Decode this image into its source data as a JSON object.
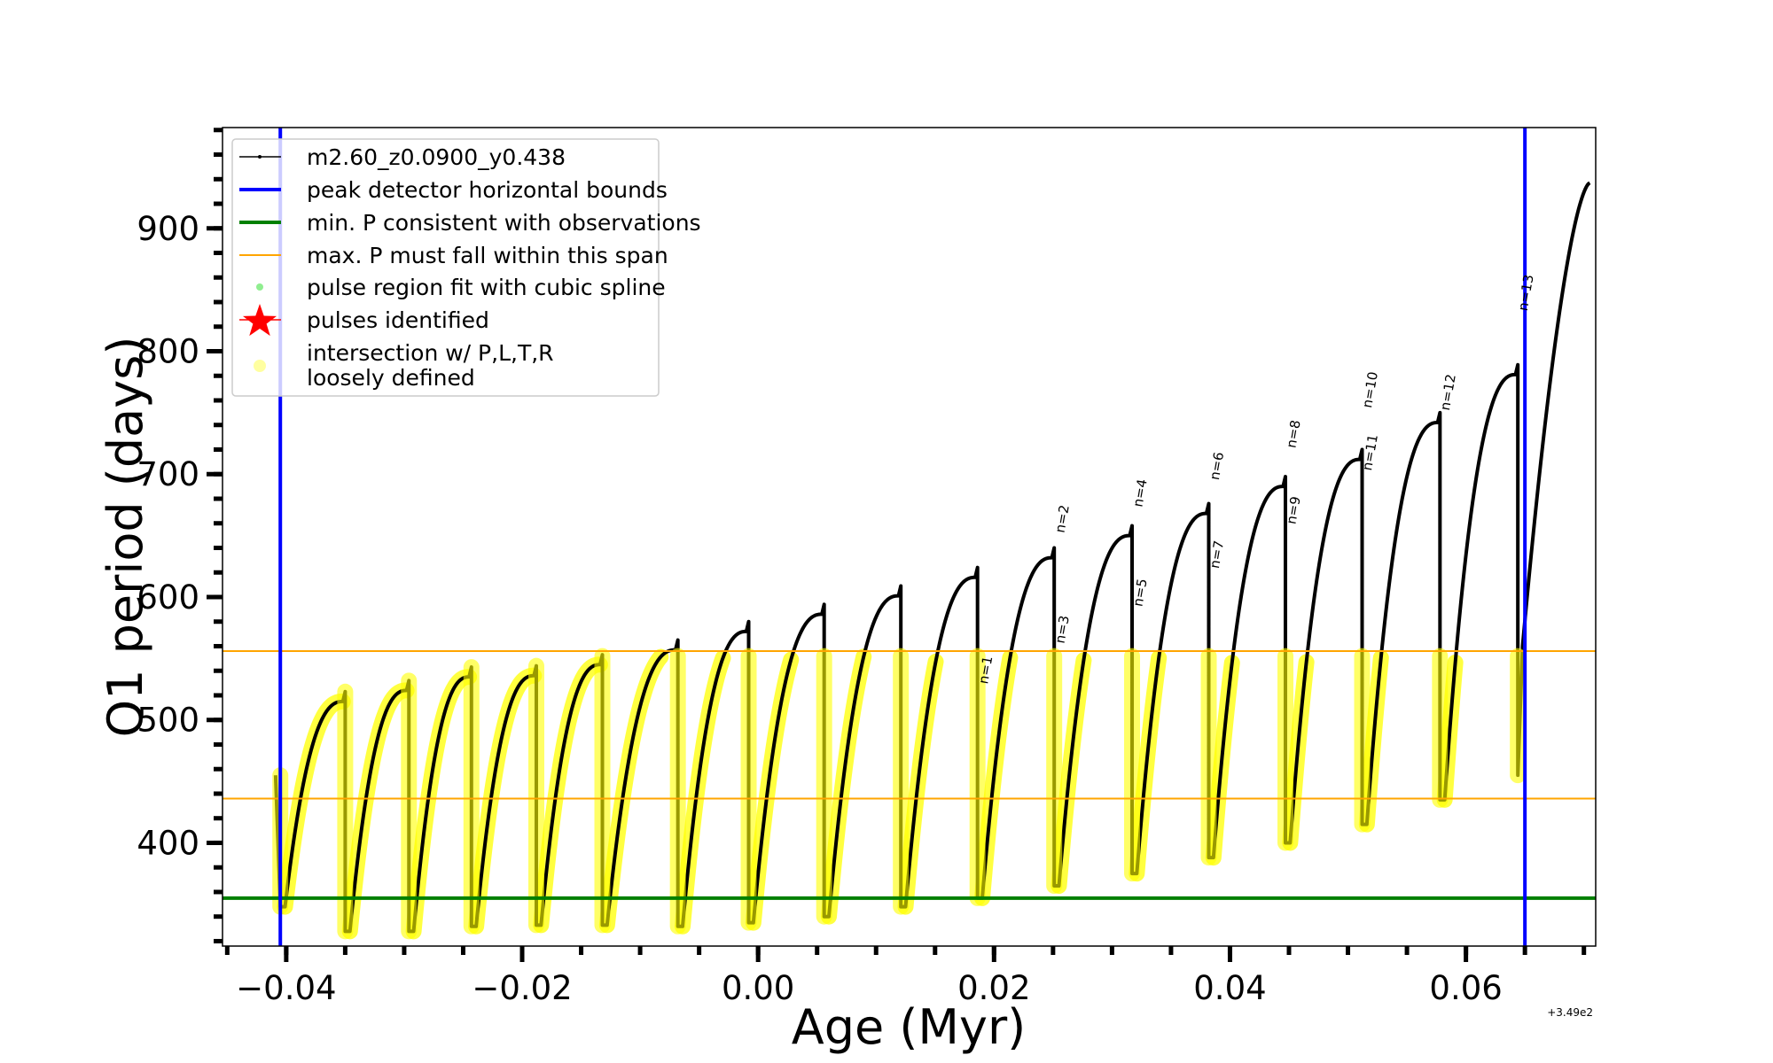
{
  "chart_data": {
    "type": "line",
    "xlabel": "Age (Myr)",
    "ylabel": "O1 period (days)",
    "x_offset_text": "+3.49e2",
    "xlim": [
      -0.0454,
      0.071
    ],
    "ylim": [
      316,
      982
    ],
    "xticks": [
      -0.04,
      -0.02,
      0.0,
      0.02,
      0.04,
      0.06
    ],
    "xtick_labels": [
      "−0.04",
      "−0.02",
      "0.00",
      "0.02",
      "0.04",
      "0.06"
    ],
    "xminor_step": 0.005,
    "yticks": [
      400,
      500,
      600,
      700,
      800,
      900
    ],
    "ytick_labels": [
      "400",
      "500",
      "600",
      "700",
      "800",
      "900"
    ],
    "yminor_step": 20,
    "grid": false,
    "legend_position": "upper-left",
    "legend": [
      {
        "label": "m2.60_z0.0900_y0.438",
        "color": "#000000",
        "kind": "line-dot"
      },
      {
        "label": "peak detector horizontal bounds",
        "color": "#0000ff",
        "kind": "thick-line"
      },
      {
        "label": "min. P consistent with observations",
        "color": "#008000",
        "kind": "thick-line"
      },
      {
        "label": "max. P must fall within this span",
        "color": "#ffa500",
        "kind": "thin-line"
      },
      {
        "label": "pulse region fit with cubic spline",
        "color": "#90ee90",
        "kind": "dot"
      },
      {
        "label": "pulses identified",
        "color": "#ff0000",
        "kind": "star"
      },
      {
        "label": "intersection w/ P,L,T,R",
        "label2": "loosely defined",
        "color": "#ffffa0",
        "kind": "circle"
      }
    ],
    "series": {
      "name": "m2.60_z0.0900_y0.438",
      "start_value": 455,
      "pulse_ages": [
        -0.0405,
        -0.035,
        -0.0296,
        -0.0243,
        -0.0188,
        -0.0132,
        -0.0068,
        -0.0008,
        0.0056,
        0.0121,
        0.0186,
        0.0251,
        0.0317,
        0.0382,
        0.0447,
        0.0512,
        0.0578,
        0.0644
      ],
      "post_pulse_minima": [
        348,
        328,
        328,
        332,
        333,
        333,
        332,
        335,
        340,
        348,
        355,
        365,
        375,
        388,
        400,
        415,
        435,
        455
      ],
      "cycle_peaks": [
        515,
        524,
        535,
        536,
        545,
        557,
        572,
        586,
        601,
        616,
        632,
        650,
        668,
        690,
        712,
        742,
        781,
        840
      ],
      "final_rise": {
        "from": 560,
        "to": 937,
        "end_age": 0.0705
      }
    },
    "vertical_bounds": [
      -0.0405,
      0.065
    ],
    "min_period_line": 355,
    "max_period_span": [
      436,
      556
    ],
    "yellow_threshold": 552,
    "annotations": [
      {
        "text": "n=1",
        "x": 0.0186,
        "y": 540
      },
      {
        "text": "n=2",
        "x": 0.0251,
        "y": 663
      },
      {
        "text": "n=3",
        "x": 0.0251,
        "y": 573
      },
      {
        "text": "n=4",
        "x": 0.0317,
        "y": 684
      },
      {
        "text": "n=5",
        "x": 0.0317,
        "y": 603
      },
      {
        "text": "n=6",
        "x": 0.0382,
        "y": 706
      },
      {
        "text": "n=7",
        "x": 0.0382,
        "y": 634
      },
      {
        "text": "n=8",
        "x": 0.0447,
        "y": 732
      },
      {
        "text": "n=9",
        "x": 0.0447,
        "y": 670
      },
      {
        "text": "n=10",
        "x": 0.0512,
        "y": 768
      },
      {
        "text": "n=11",
        "x": 0.0512,
        "y": 717
      },
      {
        "text": "n=12",
        "x": 0.0578,
        "y": 766
      },
      {
        "text": "n=13",
        "x": 0.0644,
        "y": 847
      }
    ]
  }
}
